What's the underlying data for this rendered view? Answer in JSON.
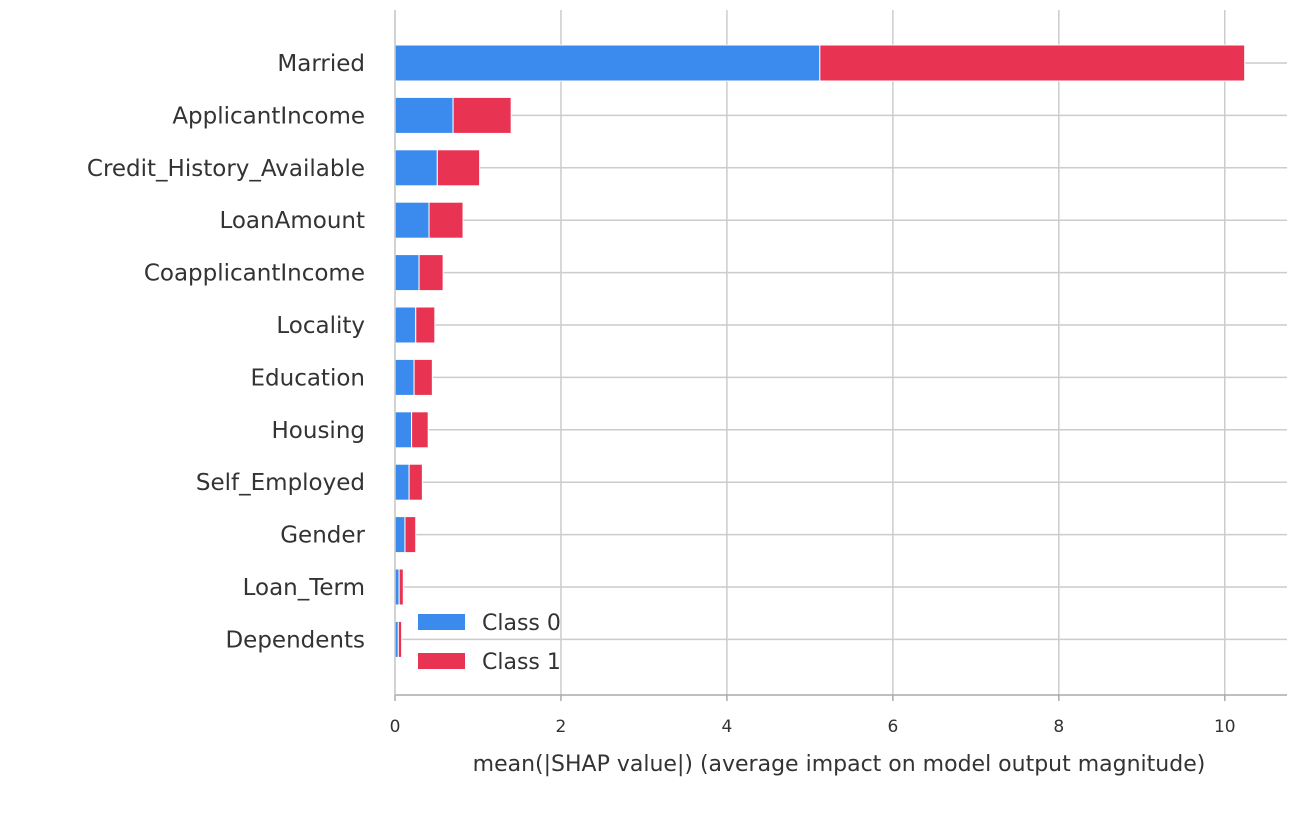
{
  "chart_data": {
    "type": "bar",
    "orientation": "horizontal",
    "stacked": true,
    "categories": [
      "Married",
      "ApplicantIncome",
      "Credit_History_Available",
      "LoanAmount",
      "CoapplicantIncome",
      "Locality",
      "Education",
      "Housing",
      "Self_Employed",
      "Gender",
      "Loan_Term",
      "Dependents"
    ],
    "series": [
      {
        "name": "Class 0",
        "color": "#3b8bef",
        "values": [
          5.12,
          0.7,
          0.51,
          0.41,
          0.29,
          0.25,
          0.23,
          0.2,
          0.17,
          0.12,
          0.05,
          0.04
        ]
      },
      {
        "name": "Class 1",
        "color": "#e93353",
        "values": [
          5.12,
          0.7,
          0.51,
          0.41,
          0.29,
          0.23,
          0.22,
          0.2,
          0.16,
          0.13,
          0.05,
          0.04
        ]
      }
    ],
    "xlabel": "mean(|SHAP value|) (average impact on model output magnitude)",
    "xlim": [
      0,
      10.75
    ],
    "xticks": [
      0,
      2,
      4,
      6,
      8,
      10
    ],
    "xtick_labels": [
      "0",
      "2",
      "4",
      "6",
      "8",
      "10"
    ],
    "grid": true,
    "legend": "lower-left"
  }
}
